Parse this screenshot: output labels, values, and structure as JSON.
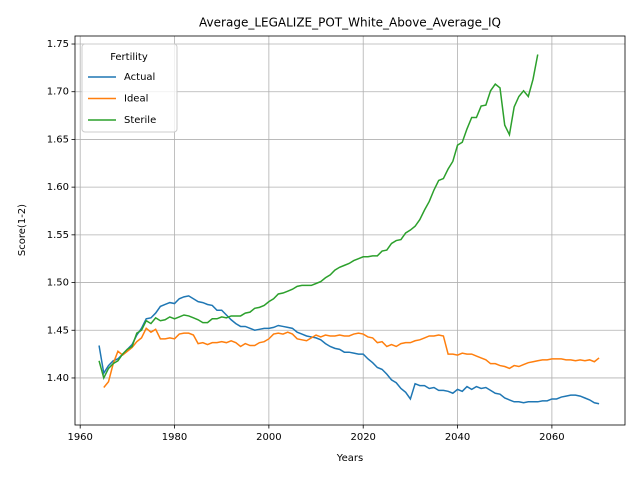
{
  "chart_data": {
    "type": "line",
    "title": "Average_LEGALIZE_POT_White_Above_Average_IQ",
    "x_label": "Years",
    "y_label": "Score(1-2)",
    "legend_title": "Fertility",
    "legend_position": "upper left",
    "grid": true,
    "x": [
      1964,
      1965,
      1966,
      1967,
      1968,
      1969,
      1970,
      1971,
      1972,
      1973,
      1974,
      1975,
      1976,
      1977,
      1978,
      1979,
      1980,
      1981,
      1982,
      1983,
      1984,
      1985,
      1986,
      1987,
      1988,
      1989,
      1990,
      1991,
      1992,
      1993,
      1994,
      1995,
      1996,
      1997,
      1998,
      1999,
      2000,
      2001,
      2002,
      2003,
      2004,
      2005,
      2006,
      2007,
      2008,
      2009,
      2010,
      2011,
      2012,
      2013,
      2014,
      2015,
      2016,
      2017,
      2018,
      2019,
      2020,
      2021,
      2022,
      2023,
      2024,
      2025,
      2026,
      2027,
      2028,
      2029,
      2030,
      2031,
      2032,
      2033,
      2034,
      2035,
      2036,
      2037,
      2038,
      2039,
      2040,
      2041,
      2042,
      2043,
      2044,
      2045,
      2046,
      2047,
      2048,
      2049,
      2050,
      2051,
      2052,
      2053,
      2054,
      2055,
      2056,
      2057,
      2058,
      2059,
      2060,
      2061,
      2062,
      2063,
      2064,
      2065,
      2066,
      2067,
      2068,
      2069,
      2070
    ],
    "series": [
      {
        "name": "Actual",
        "color": "#1f77b4",
        "values": [
          1.434,
          1.405,
          1.413,
          1.418,
          1.42,
          1.425,
          1.43,
          1.435,
          1.445,
          1.452,
          1.462,
          1.463,
          1.468,
          1.475,
          1.477,
          1.479,
          1.478,
          1.483,
          1.485,
          1.486,
          1.483,
          1.48,
          1.479,
          1.477,
          1.476,
          1.471,
          1.471,
          1.466,
          1.461,
          1.457,
          1.454,
          1.454,
          1.452,
          1.45,
          1.451,
          1.452,
          1.452,
          1.453,
          1.455,
          1.454,
          1.453,
          1.452,
          1.448,
          1.446,
          1.444,
          1.443,
          1.442,
          1.44,
          1.436,
          1.433,
          1.431,
          1.43,
          1.427,
          1.427,
          1.426,
          1.425,
          1.425,
          1.42,
          1.416,
          1.411,
          1.409,
          1.404,
          1.398,
          1.395,
          1.389,
          1.385,
          1.378,
          1.394,
          1.392,
          1.392,
          1.389,
          1.39,
          1.387,
          1.387,
          1.386,
          1.384,
          1.388,
          1.386,
          1.391,
          1.388,
          1.391,
          1.389,
          1.39,
          1.387,
          1.384,
          1.383,
          1.379,
          1.377,
          1.375,
          1.375,
          1.374,
          1.375,
          1.375,
          1.375,
          1.376,
          1.376,
          1.378,
          1.378,
          1.38,
          1.381,
          1.382,
          1.382,
          1.381,
          1.379,
          1.377,
          1.374,
          1.373
        ]
      },
      {
        "name": "Ideal",
        "color": "#ff7f0e",
        "values": [
          null,
          1.39,
          1.396,
          1.415,
          1.428,
          1.424,
          1.428,
          1.432,
          1.438,
          1.442,
          1.452,
          1.448,
          1.451,
          1.441,
          1.441,
          1.442,
          1.441,
          1.446,
          1.447,
          1.447,
          1.445,
          1.436,
          1.437,
          1.435,
          1.437,
          1.437,
          1.438,
          1.437,
          1.439,
          1.437,
          1.433,
          1.436,
          1.434,
          1.434,
          1.437,
          1.438,
          1.441,
          1.446,
          1.447,
          1.446,
          1.448,
          1.446,
          1.441,
          1.44,
          1.439,
          1.442,
          1.445,
          1.443,
          1.445,
          1.444,
          1.444,
          1.445,
          1.444,
          1.444,
          1.446,
          1.447,
          1.446,
          1.443,
          1.442,
          1.437,
          1.438,
          1.433,
          1.435,
          1.433,
          1.436,
          1.437,
          1.437,
          1.439,
          1.44,
          1.442,
          1.444,
          1.444,
          1.445,
          1.444,
          1.425,
          1.425,
          1.424,
          1.426,
          1.425,
          1.425,
          1.423,
          1.421,
          1.419,
          1.415,
          1.415,
          1.413,
          1.412,
          1.41,
          1.413,
          1.412,
          1.414,
          1.416,
          1.417,
          1.418,
          1.419,
          1.419,
          1.42,
          1.42,
          1.42,
          1.419,
          1.419,
          1.418,
          1.419,
          1.418,
          1.419,
          1.417,
          1.421
        ]
      },
      {
        "name": "Sterile",
        "color": "#2ca02c",
        "values": [
          1.418,
          1.4,
          1.41,
          1.415,
          1.418,
          1.425,
          1.43,
          1.433,
          1.447,
          1.45,
          1.46,
          1.457,
          1.463,
          1.46,
          1.461,
          1.464,
          1.462,
          1.464,
          1.466,
          1.465,
          1.463,
          1.461,
          1.458,
          1.458,
          1.462,
          1.462,
          1.464,
          1.463,
          1.465,
          1.465,
          1.465,
          1.468,
          1.469,
          1.473,
          1.474,
          1.476,
          1.48,
          1.483,
          1.488,
          1.489,
          1.491,
          1.493,
          1.496,
          1.497,
          1.497,
          1.497,
          1.499,
          1.501,
          1.505,
          1.508,
          1.513,
          1.516,
          1.518,
          1.52,
          1.523,
          1.525,
          1.527,
          1.527,
          1.528,
          1.528,
          1.533,
          1.534,
          1.541,
          1.544,
          1.545,
          1.552,
          1.555,
          1.559,
          1.566,
          1.576,
          1.585,
          1.597,
          1.607,
          1.609,
          1.619,
          1.627,
          1.644,
          1.647,
          1.661,
          1.673,
          1.673,
          1.685,
          1.686,
          1.701,
          1.708,
          1.704,
          1.665,
          1.655,
          1.684,
          1.695,
          1.701,
          1.695,
          1.713,
          1.739,
          null,
          null,
          null,
          null,
          null,
          null,
          null,
          null,
          null,
          null,
          null,
          null,
          null
        ]
      }
    ],
    "xlim": [
      1958.9,
      2075.5
    ],
    "ylim": [
      1.3507,
      1.7584
    ],
    "xticks": [
      1960,
      1980,
      2000,
      2020,
      2040,
      2060
    ],
    "yticks": [
      {
        "value": 1.4,
        "label": "1.40"
      },
      {
        "value": 1.45,
        "label": "1.45"
      },
      {
        "value": 1.5,
        "label": "1.50"
      },
      {
        "value": 1.55,
        "label": "1.55"
      },
      {
        "value": 1.6,
        "label": "1.60"
      },
      {
        "value": 1.65,
        "label": "1.65"
      },
      {
        "value": 1.7,
        "label": "1.70"
      },
      {
        "value": 1.75,
        "label": "1.75"
      }
    ]
  }
}
